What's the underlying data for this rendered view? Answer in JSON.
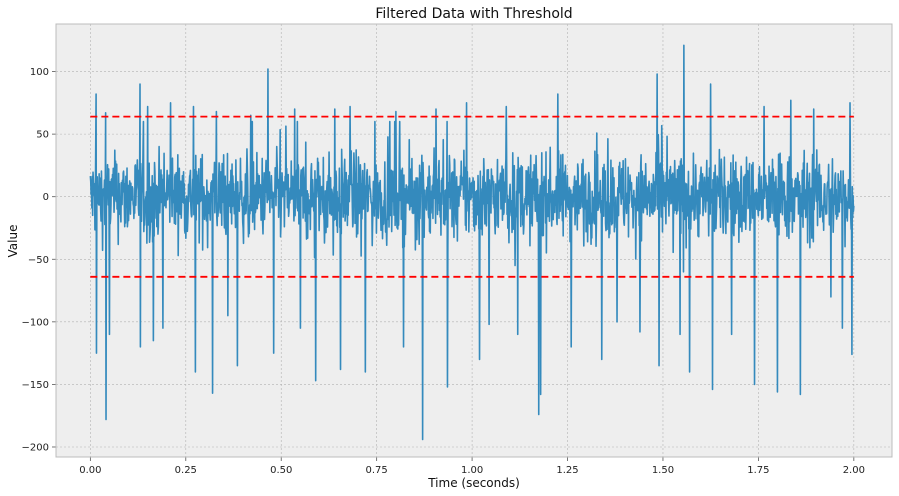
{
  "chart_data": {
    "type": "line",
    "title": "Filtered Data with Threshold",
    "xlabel": "Time (seconds)",
    "ylabel": "Value",
    "xlim": [
      -0.09,
      2.1
    ],
    "ylim": [
      -208,
      138
    ],
    "x_ticks": [
      0.0,
      0.25,
      0.5,
      0.75,
      1.0,
      1.25,
      1.5,
      1.75,
      2.0
    ],
    "x_tick_labels": [
      "0.00",
      "0.25",
      "0.50",
      "0.75",
      "1.00",
      "1.25",
      "1.50",
      "1.75",
      "2.00"
    ],
    "y_ticks": [
      -200,
      -150,
      -100,
      -50,
      0,
      50,
      100
    ],
    "y_tick_labels": [
      "−200",
      "−150",
      "−100",
      "−50",
      "0",
      "50",
      "100"
    ],
    "grid": true,
    "legend": "none",
    "series": [
      {
        "color": "#348abd",
        "style": "solid",
        "x_range": [
          0.0,
          2.0
        ],
        "num_samples": 2000,
        "typical_amplitude": 30,
        "extremes": [
          {
            "x": 0.015,
            "y": 82
          },
          {
            "x": 0.015,
            "y": -125
          },
          {
            "x": 0.04,
            "y": 67
          },
          {
            "x": 0.04,
            "y": -178
          },
          {
            "x": 0.05,
            "y": -110
          },
          {
            "x": 0.13,
            "y": 90
          },
          {
            "x": 0.13,
            "y": -120
          },
          {
            "x": 0.15,
            "y": 72
          },
          {
            "x": 0.165,
            "y": -115
          },
          {
            "x": 0.19,
            "y": -105
          },
          {
            "x": 0.21,
            "y": 75
          },
          {
            "x": 0.27,
            "y": 72
          },
          {
            "x": 0.275,
            "y": -140
          },
          {
            "x": 0.32,
            "y": -157
          },
          {
            "x": 0.33,
            "y": 68
          },
          {
            "x": 0.36,
            "y": -95
          },
          {
            "x": 0.385,
            "y": -135
          },
          {
            "x": 0.42,
            "y": 65
          },
          {
            "x": 0.465,
            "y": 102
          },
          {
            "x": 0.48,
            "y": -125
          },
          {
            "x": 0.535,
            "y": 70
          },
          {
            "x": 0.55,
            "y": -105
          },
          {
            "x": 0.59,
            "y": -147
          },
          {
            "x": 0.64,
            "y": 70
          },
          {
            "x": 0.655,
            "y": -138
          },
          {
            "x": 0.68,
            "y": 72
          },
          {
            "x": 0.72,
            "y": -140
          },
          {
            "x": 0.8,
            "y": 68
          },
          {
            "x": 0.82,
            "y": -120
          },
          {
            "x": 0.87,
            "y": -194
          },
          {
            "x": 0.905,
            "y": 70
          },
          {
            "x": 0.935,
            "y": -152
          },
          {
            "x": 0.985,
            "y": 75
          },
          {
            "x": 1.02,
            "y": -130
          },
          {
            "x": 1.045,
            "y": -102
          },
          {
            "x": 1.09,
            "y": 72
          },
          {
            "x": 1.12,
            "y": -110
          },
          {
            "x": 1.175,
            "y": -174
          },
          {
            "x": 1.18,
            "y": -158
          },
          {
            "x": 1.225,
            "y": 82
          },
          {
            "x": 1.26,
            "y": -120
          },
          {
            "x": 1.34,
            "y": -130
          },
          {
            "x": 1.38,
            "y": -100
          },
          {
            "x": 1.44,
            "y": -108
          },
          {
            "x": 1.485,
            "y": 98
          },
          {
            "x": 1.49,
            "y": -135
          },
          {
            "x": 1.545,
            "y": -110
          },
          {
            "x": 1.555,
            "y": 121
          },
          {
            "x": 1.57,
            "y": -140
          },
          {
            "x": 1.625,
            "y": 90
          },
          {
            "x": 1.63,
            "y": -154
          },
          {
            "x": 1.68,
            "y": -110
          },
          {
            "x": 1.74,
            "y": -150
          },
          {
            "x": 1.765,
            "y": 72
          },
          {
            "x": 1.8,
            "y": -156
          },
          {
            "x": 1.835,
            "y": 77
          },
          {
            "x": 1.86,
            "y": -158
          },
          {
            "x": 1.895,
            "y": 70
          },
          {
            "x": 1.94,
            "y": -80
          },
          {
            "x": 1.97,
            "y": -105
          },
          {
            "x": 1.99,
            "y": 75
          },
          {
            "x": 1.995,
            "y": -126
          }
        ]
      },
      {
        "color": "#ff0000",
        "style": "dashed",
        "x": [
          0.0,
          2.0
        ],
        "values": [
          64,
          64
        ]
      },
      {
        "color": "#ff0000",
        "style": "dashed",
        "x": [
          0.0,
          2.0
        ],
        "values": [
          -64,
          -64
        ]
      }
    ],
    "colors": {
      "plot_background": "#eeeeee",
      "grid": "#b2b2b2",
      "axes_edge": "#bcbcbc"
    }
  }
}
